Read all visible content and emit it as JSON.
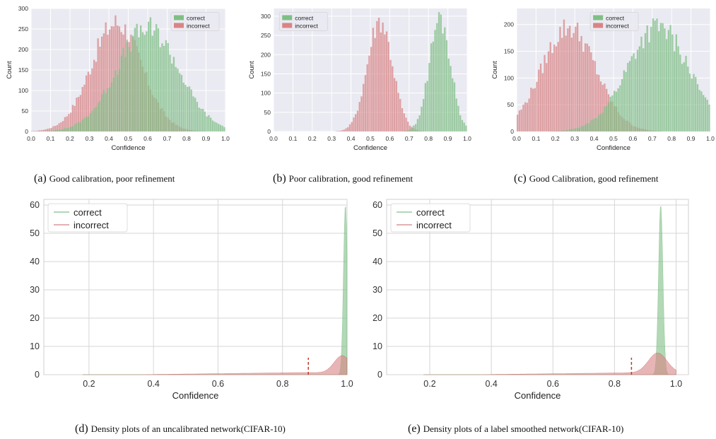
{
  "colors": {
    "correct": "#7fbf85",
    "incorrect": "#d98486",
    "correct_line": "#4ea95b",
    "incorrect_line": "#c44e52",
    "axes_bg_hist": "#eaeaf2",
    "grid_hist": "#ffffff",
    "grid_density": "#d6d6d6"
  },
  "captions": [
    {
      "label": "(a)",
      "text": "Good calibration, poor refinement"
    },
    {
      "label": "(b)",
      "text": "Poor calibration, good refinement"
    },
    {
      "label": "(c)",
      "text": "Good Calibration, good refinement"
    },
    {
      "label": "(d)",
      "text": "Density plots of an uncalibrated network(CIFAR-10)"
    },
    {
      "label": "(e)",
      "text": "Density plots of a label smoothed network(CIFAR-10)"
    }
  ],
  "chart_data": [
    {
      "type": "bar",
      "style": "histogram",
      "xlabel": "Confidence",
      "ylabel": "Count",
      "xlim": [
        0.0,
        1.0
      ],
      "ylim": [
        0,
        300
      ],
      "xticks": [
        "0.0",
        "0.1",
        "0.2",
        "0.3",
        "0.4",
        "0.5",
        "0.6",
        "0.7",
        "0.8",
        "0.9",
        "1.0"
      ],
      "yticks": [
        "0",
        "50",
        "100",
        "150",
        "200",
        "250",
        "300"
      ],
      "legend": "top-right",
      "grid": true,
      "series": [
        {
          "name": "correct",
          "shape": {
            "mu": 0.6,
            "sigma": 0.16,
            "peak": 250
          }
        },
        {
          "name": "incorrect",
          "shape": {
            "mu": 0.44,
            "sigma": 0.13,
            "peak": 265
          }
        }
      ]
    },
    {
      "type": "bar",
      "style": "histogram",
      "xlabel": "Confidence",
      "ylabel": "Count",
      "xlim": [
        0.0,
        1.0
      ],
      "ylim": [
        0,
        320
      ],
      "xticks": [
        "0.0",
        "0.1",
        "0.2",
        "0.3",
        "0.4",
        "0.5",
        "0.6",
        "0.7",
        "0.8",
        "0.9",
        "1.0"
      ],
      "yticks": [
        "0",
        "50",
        "100",
        "150",
        "200",
        "250",
        "300"
      ],
      "legend": "top-left",
      "grid": true,
      "series": [
        {
          "name": "correct",
          "shape": {
            "mu": 0.86,
            "sigma": 0.055,
            "peak": 290
          }
        },
        {
          "name": "incorrect",
          "shape": {
            "mu": 0.55,
            "sigma": 0.065,
            "peak": 290
          }
        }
      ]
    },
    {
      "type": "bar",
      "style": "histogram",
      "xlabel": "Confidence",
      "ylabel": "Count",
      "xlim": [
        0.0,
        1.0
      ],
      "ylim": [
        0,
        230
      ],
      "xticks": [
        "0.0",
        "0.1",
        "0.2",
        "0.3",
        "0.4",
        "0.5",
        "0.6",
        "0.7",
        "0.8",
        "0.9",
        "1.0"
      ],
      "yticks": [
        "0",
        "50",
        "100",
        "150",
        "200"
      ],
      "legend": "top-center",
      "grid": true,
      "series": [
        {
          "name": "correct",
          "shape": {
            "mu": 0.73,
            "sigma": 0.16,
            "peak": 195
          }
        },
        {
          "name": "incorrect",
          "shape": {
            "mu": 0.27,
            "sigma": 0.14,
            "peak": 195
          }
        }
      ]
    },
    {
      "type": "area",
      "style": "density",
      "xlabel": "Confidence",
      "ylabel": "",
      "xlim": [
        0.06,
        1.0
      ],
      "ylim": [
        0,
        62
      ],
      "xticks": [
        "0.2",
        "0.4",
        "0.6",
        "0.8",
        "1.0"
      ],
      "yticks": [
        "0",
        "10",
        "20",
        "30",
        "40",
        "50",
        "60"
      ],
      "legend": "top-left",
      "grid": true,
      "marker_line_x": 0.88,
      "series": [
        {
          "name": "correct",
          "shape": {
            "mu": 0.995,
            "sigma": 0.006,
            "peak": 60
          }
        },
        {
          "name": "incorrect",
          "shape": {
            "mu": 0.985,
            "sigma": 0.025,
            "peak": 6,
            "tail": 1.2
          }
        }
      ]
    },
    {
      "type": "area",
      "style": "density",
      "xlabel": "Confidence",
      "ylabel": "",
      "xlim": [
        0.06,
        1.04
      ],
      "ylim": [
        0,
        62
      ],
      "xticks": [
        "0.2",
        "0.4",
        "0.6",
        "0.8",
        "1.0"
      ],
      "yticks": [
        "0",
        "10",
        "20",
        "30",
        "40",
        "50",
        "60"
      ],
      "legend": "top-left",
      "grid": true,
      "marker_line_x": 0.855,
      "series": [
        {
          "name": "correct",
          "shape": {
            "mu": 0.95,
            "sigma": 0.007,
            "peak": 60
          }
        },
        {
          "name": "incorrect",
          "shape": {
            "mu": 0.94,
            "sigma": 0.03,
            "peak": 7,
            "tail": 1.1
          }
        }
      ]
    }
  ]
}
